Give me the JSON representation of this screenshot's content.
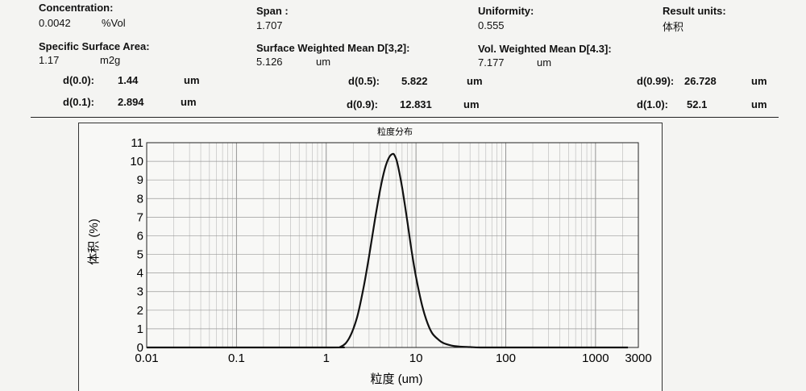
{
  "summary": {
    "concentration": {
      "label": "Concentration:",
      "value": "0.0042",
      "unit": "%Vol"
    },
    "span": {
      "label": "Span :",
      "value": "1.707"
    },
    "uniformity": {
      "label": "Uniformity:",
      "value": "0.555"
    },
    "result_units": {
      "label": "Result units:",
      "value": "体积"
    },
    "ssa": {
      "label": "Specific Surface Area:",
      "value": "1.17",
      "unit": "m2g"
    },
    "d32": {
      "label": "Surface Weighted Mean D[3,2]:",
      "value": "5.126",
      "unit": "um"
    },
    "d43": {
      "label": "Vol. Weighted Mean D[4.3]:",
      "value": "7.177",
      "unit": "um"
    }
  },
  "percentiles": [
    {
      "label": "d(0.0):",
      "value": "1.44",
      "unit": "um"
    },
    {
      "label": "d(0.1):",
      "value": "2.894",
      "unit": "um"
    },
    {
      "label": "d(0.5):",
      "value": "5.822",
      "unit": "um"
    },
    {
      "label": "d(0.9):",
      "value": "12.831",
      "unit": "um"
    },
    {
      "label": "d(0.99):",
      "value": "26.728",
      "unit": "um"
    },
    {
      "label": "d(1.0):",
      "value": "52.1",
      "unit": "um"
    }
  ],
  "chart_data": {
    "type": "line",
    "title": "粒度分布",
    "xlabel": "粒度 (um)",
    "ylabel": "体积 (%)",
    "xscale": "log",
    "xlim": [
      0.01,
      3000
    ],
    "ylim": [
      0,
      11
    ],
    "xticks": [
      "0.01",
      "0.1",
      "1",
      "10",
      "100",
      "1000",
      "3000"
    ],
    "yticks": [
      "0",
      "1",
      "2",
      "3",
      "4",
      "5",
      "6",
      "7",
      "8",
      "9",
      "10",
      "11"
    ],
    "grid": true,
    "series": [
      {
        "x": [
          0.01,
          1.0,
          1.44,
          1.8,
          2.2,
          2.6,
          3.0,
          3.5,
          4.0,
          4.5,
          5.0,
          5.5,
          5.8,
          6.2,
          7.0,
          8.0,
          9.0,
          10.0,
          11.5,
          13.0,
          15.0,
          17.5,
          20.0,
          25.0,
          30.0,
          40.0,
          52.1,
          100.0,
          1000.0,
          2300.0
        ],
        "y": [
          0,
          0,
          0.03,
          0.5,
          1.6,
          3.2,
          4.9,
          6.9,
          8.5,
          9.6,
          10.2,
          10.4,
          10.3,
          9.9,
          8.6,
          6.8,
          5.1,
          3.8,
          2.4,
          1.5,
          0.8,
          0.45,
          0.25,
          0.1,
          0.05,
          0.02,
          0,
          0,
          0,
          0
        ]
      }
    ]
  }
}
